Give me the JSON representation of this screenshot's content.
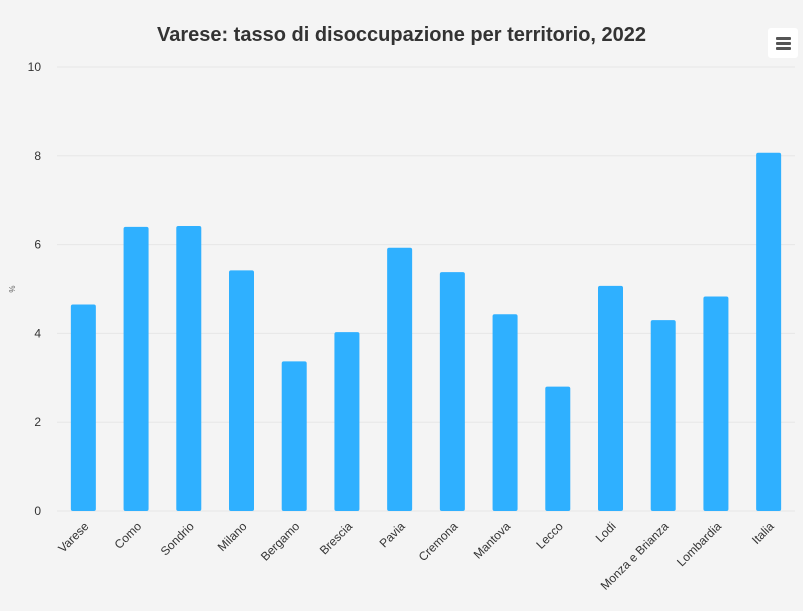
{
  "title": "Varese: tasso di disoccupazione per territorio, 2022",
  "menu": {
    "icon": "hamburger-menu-icon"
  },
  "colors": {
    "bar": "#2fb0ff",
    "background": "#f4f4f4",
    "grid": "#e6e6e6"
  },
  "chart_data": {
    "type": "bar",
    "title": "Varese: tasso di disoccupazione per territorio, 2022",
    "xlabel": "",
    "ylabel": "%",
    "ylim": [
      0,
      10
    ],
    "yticks": [
      0,
      2,
      4,
      6,
      8,
      10
    ],
    "grid": true,
    "legend": "none",
    "categories": [
      "Varese",
      "Como",
      "Sondrio",
      "Milano",
      "Bergamo",
      "Brescia",
      "Pavia",
      "Cremona",
      "Mantova",
      "Lecco",
      "Lodi",
      "Monza e Brianza",
      "Lombardia",
      "Italia"
    ],
    "values": [
      4.65,
      6.4,
      6.42,
      5.42,
      3.37,
      4.03,
      5.93,
      5.38,
      4.43,
      2.8,
      5.07,
      4.3,
      4.83,
      8.07
    ]
  }
}
